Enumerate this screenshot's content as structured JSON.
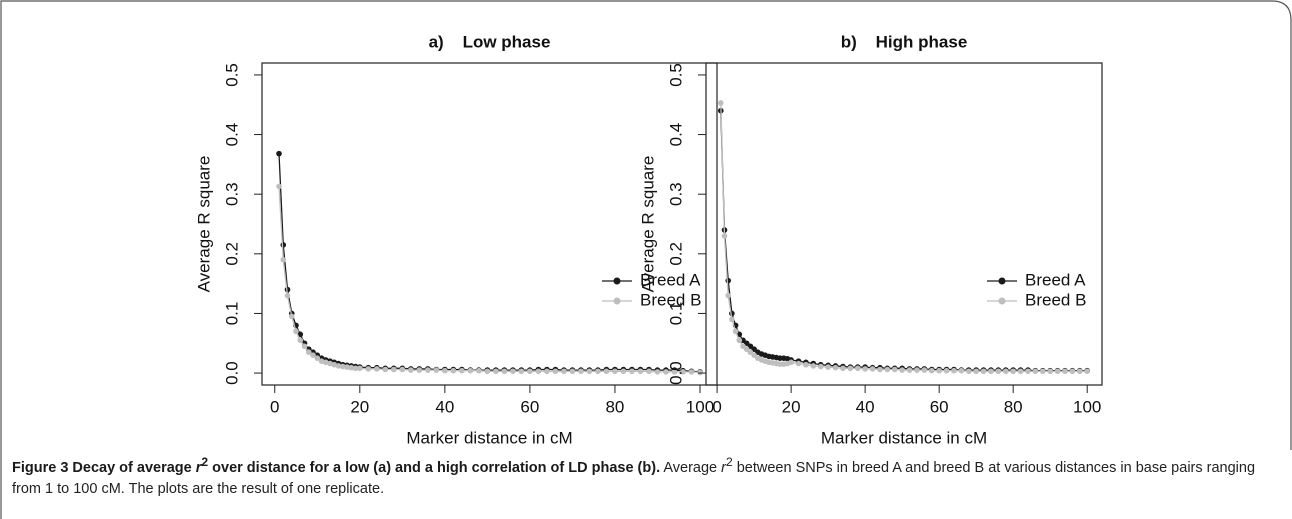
{
  "chart_data": [
    {
      "type": "line",
      "title": "a)    Low phase",
      "x_label": "Marker distance in cM",
      "y_label": "Average R square",
      "x": [
        1,
        2,
        3,
        4,
        5,
        6,
        7,
        8,
        9,
        10,
        11,
        12,
        13,
        14,
        15,
        16,
        17,
        18,
        19,
        20,
        22,
        24,
        26,
        28,
        30,
        32,
        34,
        36,
        38,
        40,
        42,
        44,
        46,
        48,
        50,
        52,
        54,
        56,
        58,
        60,
        62,
        64,
        66,
        68,
        70,
        72,
        74,
        76,
        78,
        80,
        82,
        84,
        86,
        88,
        90,
        92,
        94,
        96,
        98,
        100
      ],
      "series": [
        {
          "name": "Breed A",
          "color": "#1a1a1a",
          "values": [
            0.368,
            0.215,
            0.14,
            0.1,
            0.08,
            0.065,
            0.05,
            0.04,
            0.035,
            0.03,
            0.025,
            0.022,
            0.02,
            0.018,
            0.016,
            0.014,
            0.013,
            0.012,
            0.011,
            0.01,
            0.009,
            0.009,
            0.008,
            0.008,
            0.008,
            0.007,
            0.007,
            0.007,
            0.006,
            0.006,
            0.006,
            0.006,
            0.005,
            0.005,
            0.005,
            0.005,
            0.005,
            0.005,
            0.005,
            0.005,
            0.006,
            0.006,
            0.006,
            0.005,
            0.005,
            0.005,
            0.005,
            0.005,
            0.006,
            0.006,
            0.006,
            0.006,
            0.006,
            0.006,
            0.005,
            0.005,
            0.005,
            0.004,
            0.003,
            0.002
          ]
        },
        {
          "name": "Breed B",
          "color": "#bebebe",
          "values": [
            0.313,
            0.19,
            0.13,
            0.095,
            0.07,
            0.055,
            0.045,
            0.035,
            0.03,
            0.025,
            0.02,
            0.018,
            0.016,
            0.014,
            0.012,
            0.011,
            0.01,
            0.009,
            0.008,
            0.008,
            0.007,
            0.007,
            0.006,
            0.006,
            0.006,
            0.005,
            0.005,
            0.005,
            0.005,
            0.004,
            0.004,
            0.004,
            0.004,
            0.004,
            0.003,
            0.003,
            0.003,
            0.003,
            0.003,
            0.003,
            0.003,
            0.003,
            0.003,
            0.003,
            0.003,
            0.003,
            0.003,
            0.003,
            0.003,
            0.003,
            0.003,
            0.003,
            0.003,
            0.003,
            0.002,
            0.002,
            0.002,
            0.002,
            0.002,
            0.001
          ]
        }
      ],
      "xlim": [
        -3,
        104
      ],
      "ylim": [
        -0.02,
        0.52
      ],
      "xticks": [
        0,
        20,
        40,
        60,
        80,
        100
      ],
      "yticks": [
        {
          "value": 0,
          "label": "0.0"
        },
        0.1,
        0.2,
        0.3,
        0.4,
        0.5
      ],
      "legend": "right",
      "grid": false
    },
    {
      "type": "line",
      "title": "b)    High phase",
      "x_label": "Marker distance in cM",
      "y_label": "Average R square",
      "x": [
        1,
        2,
        3,
        4,
        5,
        6,
        7,
        8,
        9,
        10,
        11,
        12,
        13,
        14,
        15,
        16,
        17,
        18,
        19,
        20,
        22,
        24,
        26,
        28,
        30,
        32,
        34,
        36,
        38,
        40,
        42,
        44,
        46,
        48,
        50,
        52,
        54,
        56,
        58,
        60,
        62,
        64,
        66,
        68,
        70,
        72,
        74,
        76,
        78,
        80,
        82,
        84,
        86,
        88,
        90,
        92,
        94,
        96,
        98,
        100
      ],
      "series": [
        {
          "name": "Breed A",
          "color": "#1a1a1a",
          "values": [
            0.44,
            0.24,
            0.155,
            0.1,
            0.08,
            0.065,
            0.055,
            0.05,
            0.045,
            0.04,
            0.035,
            0.032,
            0.03,
            0.028,
            0.027,
            0.026,
            0.025,
            0.025,
            0.024,
            0.022,
            0.02,
            0.018,
            0.016,
            0.014,
            0.013,
            0.012,
            0.011,
            0.01,
            0.01,
            0.01,
            0.009,
            0.009,
            0.008,
            0.008,
            0.008,
            0.007,
            0.007,
            0.007,
            0.006,
            0.006,
            0.006,
            0.006,
            0.005,
            0.005,
            0.005,
            0.005,
            0.005,
            0.005,
            0.005,
            0.005,
            0.005,
            0.005,
            0.004,
            0.004,
            0.004,
            0.004,
            0.004,
            0.004,
            0.004,
            0.004
          ]
        },
        {
          "name": "Breed B",
          "color": "#bebebe",
          "values": [
            0.453,
            0.23,
            0.13,
            0.09,
            0.07,
            0.055,
            0.045,
            0.04,
            0.035,
            0.03,
            0.025,
            0.022,
            0.02,
            0.018,
            0.017,
            0.016,
            0.015,
            0.015,
            0.016,
            0.018,
            0.016,
            0.014,
            0.012,
            0.011,
            0.01,
            0.009,
            0.008,
            0.008,
            0.008,
            0.007,
            0.007,
            0.006,
            0.006,
            0.006,
            0.005,
            0.005,
            0.005,
            0.005,
            0.004,
            0.004,
            0.004,
            0.004,
            0.004,
            0.003,
            0.003,
            0.003,
            0.003,
            0.003,
            0.003,
            0.003,
            0.003,
            0.003,
            0.003,
            0.003,
            0.003,
            0.003,
            0.003,
            0.003,
            0.003,
            0.003
          ]
        }
      ],
      "xlim": [
        -3,
        104
      ],
      "ylim": [
        -0.02,
        0.52
      ],
      "xticks": [
        0,
        20,
        40,
        60,
        80,
        100
      ],
      "yticks": [
        {
          "value": 0,
          "label": "0.0"
        },
        0.1,
        0.2,
        0.3,
        0.4,
        0.5
      ],
      "legend": "right",
      "grid": false
    }
  ],
  "caption": {
    "bold": [
      "Figure 3 Decay of average ",
      "r",
      "2",
      " over distance for a low (a) and a high correlation of LD phase (b)."
    ],
    "text": [
      "Average ",
      "r",
      "2",
      " between SNPs in breed A and breed B at various distances in base pairs ranging from 1 to 100 cM. The plots are the result of one replicate."
    ]
  }
}
